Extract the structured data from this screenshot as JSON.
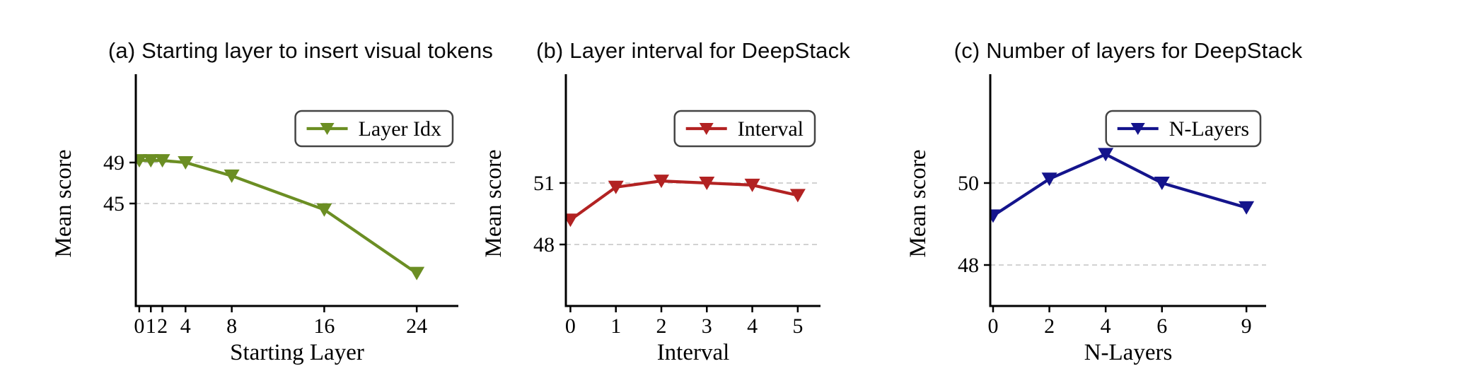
{
  "figure": {
    "background": "#ffffff",
    "kind": "three-panel line figure"
  },
  "styles": {
    "grid_color": "#cccccc",
    "axis_color": "#000000",
    "text_color": "#000000",
    "legend_border_color": "#444444",
    "legend_fill": "#ffffff"
  },
  "chart_data": [
    {
      "type": "line",
      "panel": "a",
      "title": "(a) Starting layer to insert visual tokens",
      "xlabel": "Starting Layer",
      "ylabel": "Mean score",
      "legend": {
        "label": "Layer Idx",
        "position": "upper right"
      },
      "color": "#6b8e23",
      "marker": "triangle-down",
      "x": [
        0,
        1,
        2,
        4,
        8,
        16,
        24
      ],
      "y": [
        49.2,
        49.2,
        49.2,
        49.0,
        47.7,
        44.4,
        38.2
      ],
      "xticks": [
        0,
        1,
        2,
        4,
        8,
        16,
        24
      ],
      "yticks": [
        49,
        45
      ],
      "gridlines_y": [
        49,
        45
      ],
      "grid_style": "dashed",
      "xlim": [
        -0.3,
        27.6
      ],
      "ylim": [
        35,
        55
      ]
    },
    {
      "type": "line",
      "panel": "b",
      "title": "(b) Layer interval for DeepStack",
      "xlabel": "Interval",
      "ylabel": "Mean score",
      "legend": {
        "label": "Interval",
        "position": "upper right"
      },
      "color": "#b22222",
      "marker": "triangle-down",
      "x": [
        0,
        1,
        2,
        3,
        4,
        5
      ],
      "y": [
        49.2,
        50.8,
        51.1,
        51.0,
        50.9,
        50.4
      ],
      "xticks": [
        0,
        1,
        2,
        3,
        4,
        5
      ],
      "yticks": [
        51,
        48
      ],
      "gridlines_y": [
        51,
        48
      ],
      "grid_style": "dashed",
      "xlim": [
        -0.1,
        5.5
      ],
      "ylim": [
        45,
        55
      ]
    },
    {
      "type": "line",
      "panel": "c",
      "title": "(c) Number of layers for DeepStack",
      "xlabel": "N-Layers",
      "ylabel": "Mean score",
      "legend": {
        "label": "N-Layers",
        "position": "upper right"
      },
      "color": "#14148c",
      "marker": "triangle-down",
      "x": [
        0,
        2,
        4,
        6,
        9
      ],
      "y": [
        49.2,
        50.1,
        50.7,
        50.0,
        49.4
      ],
      "xticks": [
        0,
        2,
        4,
        6,
        9
      ],
      "yticks": [
        50,
        48
      ],
      "gridlines_y": [
        50,
        48
      ],
      "grid_style": "dashed",
      "xlim": [
        -0.1,
        9.7
      ],
      "ylim": [
        47,
        52
      ]
    }
  ]
}
